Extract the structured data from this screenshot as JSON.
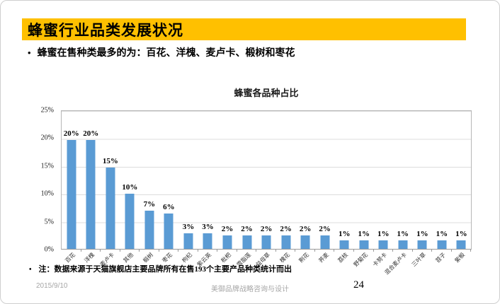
{
  "slide": {
    "title": "蜂蜜行业品类发展状况",
    "bullet_char": "•",
    "bullet": "蜂蜜在售种类最多的为：百花、洋槐、麦卢卡、椴树和枣花",
    "note_bullet_char": "•",
    "note": "注：数据来源于天猫旗舰店主要品牌所有在售193个主要产品种类统计而出",
    "footer": {
      "date": "2015/9/10",
      "company": "美御品牌战略咨询与设计",
      "page": "24"
    },
    "colors": {
      "accent_yellow": "#FFC000",
      "bar_blue": "#5A9BD4",
      "grid_gray": "#DCDCDC",
      "footer_gray": "#A6A6A6"
    }
  },
  "chart_data": {
    "type": "bar",
    "title": "蜂蜜各品种占比",
    "categories": [
      "百花",
      "洋槐",
      "麦卢卡",
      "其他",
      "椴树",
      "枣花",
      "枸杞",
      "紫云英",
      "枇杷",
      "雪脂莲",
      "益母草",
      "槐花",
      "荆花",
      "荞麦",
      "荔枝",
      "野菊花",
      "卡努卡",
      "混合麦卢卡",
      "三叶草",
      "苕子",
      "紫椴"
    ],
    "values": [
      20,
      20,
      15,
      10,
      7,
      6,
      3,
      3,
      2,
      2,
      2,
      2,
      2,
      2,
      1,
      1,
      1,
      1,
      1,
      1,
      1
    ],
    "value_labels": [
      "20%",
      "20%",
      "15%",
      "10%",
      "7%",
      "6%",
      "3%",
      "3%",
      "2%",
      "2%",
      "2%",
      "2%",
      "2%",
      "2%",
      "1%",
      "1%",
      "1%",
      "1%",
      "1%",
      "1%",
      "1%"
    ],
    "drawn_heights_pct": [
      19.6,
      19.6,
      14.6,
      9.9,
      6.9,
      6.3,
      2.8,
      2.8,
      2.4,
      2.4,
      2.4,
      2.4,
      2.4,
      2.4,
      1.5,
      1.5,
      1.5,
      1.5,
      1.5,
      1.5,
      1.5
    ],
    "xlabel": "",
    "ylabel": "",
    "ylim": [
      0,
      25
    ],
    "yticks": [
      "25%",
      "20%",
      "15%",
      "10%",
      "5%",
      "0%"
    ],
    "grid": true,
    "legend": false,
    "bar_color": "#5A9BD4"
  }
}
